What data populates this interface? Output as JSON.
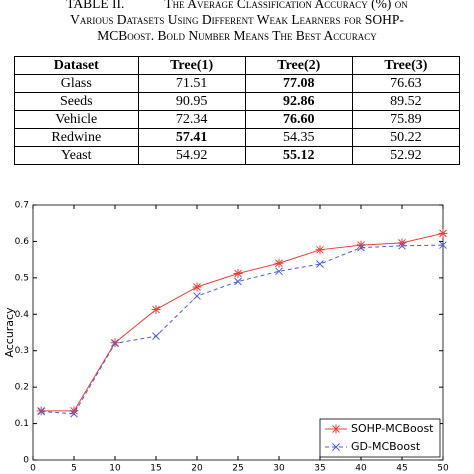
{
  "caption": {
    "label": "TABLE II.",
    "lines": [
      "The Average Classification Accuracy (%) on",
      "Various Datasets Using Different Weak Learners for SOHP-",
      "MCBoost. Bold Number Means The Best Accuracy"
    ]
  },
  "table": {
    "headers": [
      "Dataset",
      "Tree(1)",
      "Tree(2)",
      "Tree(3)"
    ],
    "rows": [
      [
        "Glass",
        "71.51",
        "77.08",
        "76.63"
      ],
      [
        "Seeds",
        "90.95",
        "92.86",
        "89.52"
      ],
      [
        "Vehicle",
        "72.34",
        "76.60",
        "75.89"
      ],
      [
        "Redwine",
        "57.41",
        "54.35",
        "50.22"
      ],
      [
        "Yeast",
        "54.92",
        "55.12",
        "52.92"
      ]
    ],
    "best": [
      2,
      2,
      2,
      1,
      2
    ]
  },
  "chart_data": {
    "type": "line",
    "ylabel": "Accuracy",
    "x": [
      1,
      5,
      10,
      15,
      20,
      25,
      30,
      35,
      40,
      45,
      50
    ],
    "series": [
      {
        "name": "SOHP-MCBoost",
        "color": "#e8403a",
        "marker": "star",
        "dash": false,
        "values": [
          0.135,
          0.135,
          0.322,
          0.413,
          0.475,
          0.512,
          0.54,
          0.577,
          0.59,
          0.596,
          0.622
        ]
      },
      {
        "name": "GD-MCBoost",
        "color": "#4a5fd0",
        "marker": "x",
        "dash": true,
        "values": [
          0.133,
          0.127,
          0.32,
          0.34,
          0.45,
          0.49,
          0.518,
          0.538,
          0.583,
          0.588,
          0.59
        ]
      }
    ],
    "xlim": [
      0,
      50
    ],
    "xticks": [
      0,
      5,
      10,
      15,
      20,
      25,
      30,
      35,
      40,
      45,
      50
    ],
    "ylim": [
      0,
      0.7
    ],
    "yticks": [
      0,
      0.1,
      0.2,
      0.3,
      0.4,
      0.5,
      0.6,
      0.7
    ],
    "legend": "lower right"
  }
}
